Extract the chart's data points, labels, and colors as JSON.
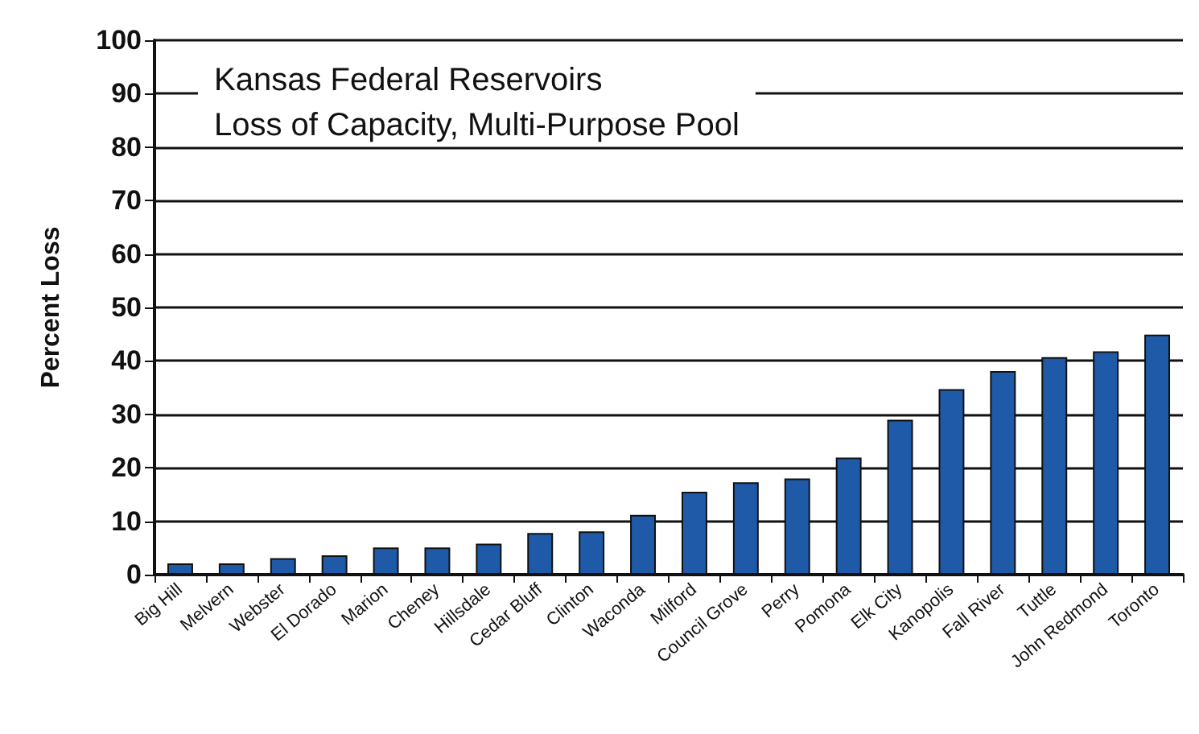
{
  "chart_data": {
    "type": "bar",
    "title": "Kansas Federal Reservoirs",
    "subtitle": "Loss of Capacity, Multi-Purpose Pool",
    "ylabel": "Percent Loss",
    "categories": [
      "Big Hill",
      "Melvern",
      "Webster",
      "El Dorado",
      "Marion",
      "Cheney",
      "Hillsdale",
      "Cedar Bluff",
      "Clinton",
      "Waconda",
      "Milford",
      "Council Grove",
      "Perry",
      "Pomona",
      "Elk City",
      "Kanopolis",
      "Fall River",
      "Tuttle",
      "John Redmond",
      "Toronto"
    ],
    "values": [
      2.1,
      2.1,
      3.1,
      3.6,
      5.1,
      5.1,
      5.8,
      7.8,
      8.1,
      11.2,
      15.5,
      17.3,
      18,
      21.9,
      29,
      34.7,
      38.1,
      40.7,
      41.8,
      44.9
    ],
    "color": "#1f5aa8",
    "ylim": [
      0,
      100
    ],
    "yticks": [
      0,
      10,
      20,
      30,
      40,
      50,
      60,
      70,
      80,
      90,
      100
    ],
    "grid": "y"
  }
}
